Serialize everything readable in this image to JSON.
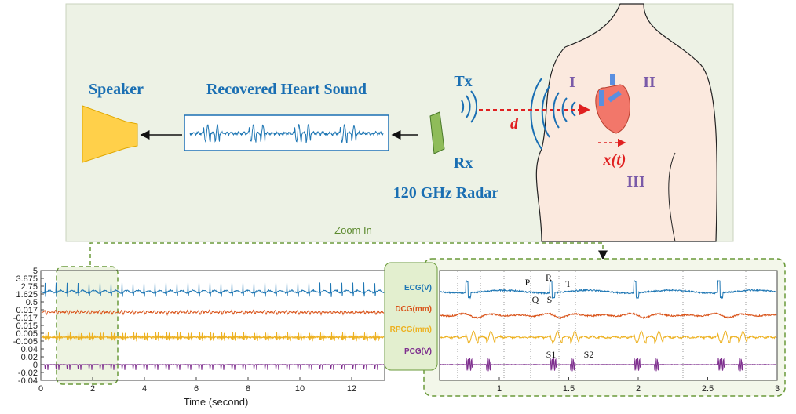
{
  "diagram": {
    "labels": {
      "speaker": "Speaker",
      "recovered": "Recovered Heart Sound",
      "tx": "Tx",
      "rx": "Rx",
      "radar": "120 GHz Radar",
      "d": "d",
      "xt": "x(t)",
      "region1": "I",
      "region2": "II",
      "region3": "III",
      "zoom": "Zoom In"
    },
    "left_plot": {
      "yticks": [
        5,
        3.875,
        2.75,
        1.625,
        0.5,
        0.017,
        -0.017,
        0.015,
        0.005,
        -0.005,
        0.04,
        0.02,
        0,
        -0.02,
        -0.04
      ],
      "xticks": [
        0,
        2,
        4,
        6,
        8,
        10,
        12
      ],
      "xlabel": "Time (second)"
    },
    "signals": [
      "ECG(V)",
      "DCG(mm)",
      "RPCG(mm)",
      "PCG(V)"
    ],
    "right_plot": {
      "xticks": [
        1,
        1.5,
        2,
        2.5,
        3
      ],
      "annotations": [
        "P",
        "R",
        "T",
        "Q",
        "S",
        "S1",
        "S2"
      ]
    }
  }
}
